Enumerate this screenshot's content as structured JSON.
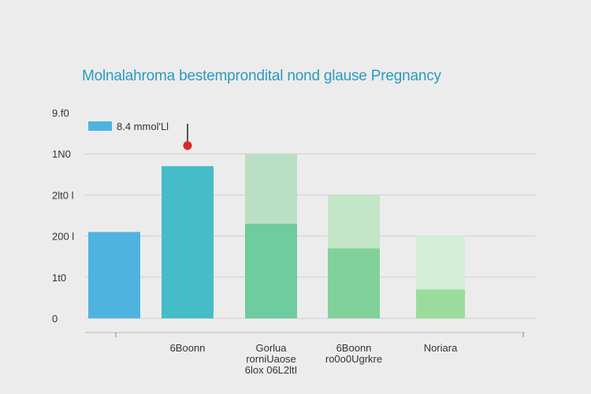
{
  "chart_data": {
    "type": "bar",
    "title": "Molnalahroma bestemprondital  nond glause Pregnancy",
    "y_tick_labels": [
      "0",
      "1t0",
      "200 l",
      "2lt0 l",
      "1N0",
      "9.f0"
    ],
    "categories": [
      [
        "",
        ""
      ],
      [
        "6Boonn"
      ],
      [
        "Gorlua",
        "rorniUaose",
        "6lox 06L2ltI"
      ],
      [
        "6Boonn",
        "ro0o0Ugrkre"
      ],
      [
        "Noriara"
      ]
    ],
    "series": [
      {
        "name": "8.4 mmol'Ll",
        "values": [
          2.1,
          3.7,
          4.0,
          3.0,
          2.0
        ]
      },
      {
        "values": [
          null,
          null,
          2.3,
          1.7,
          0.7
        ]
      }
    ],
    "marker": {
      "category_index": 1,
      "value": 4.2
    },
    "ylim": [
      0,
      5
    ],
    "grid": true,
    "legend_position": "top-left",
    "colors": {
      "series_0": [
        "#4fb3e0",
        "#46bcc8",
        "#b9e0c4",
        "#c3e6c6",
        "#d2efd6"
      ],
      "series_1": [
        "#6fcc9e",
        "#80d29a",
        "#9bdc9e"
      ],
      "legend_swatch": "#4fb3e0",
      "marker": "#d92a2a",
      "marker_stem": "#555555",
      "grid": "#cfcfcf"
    }
  }
}
